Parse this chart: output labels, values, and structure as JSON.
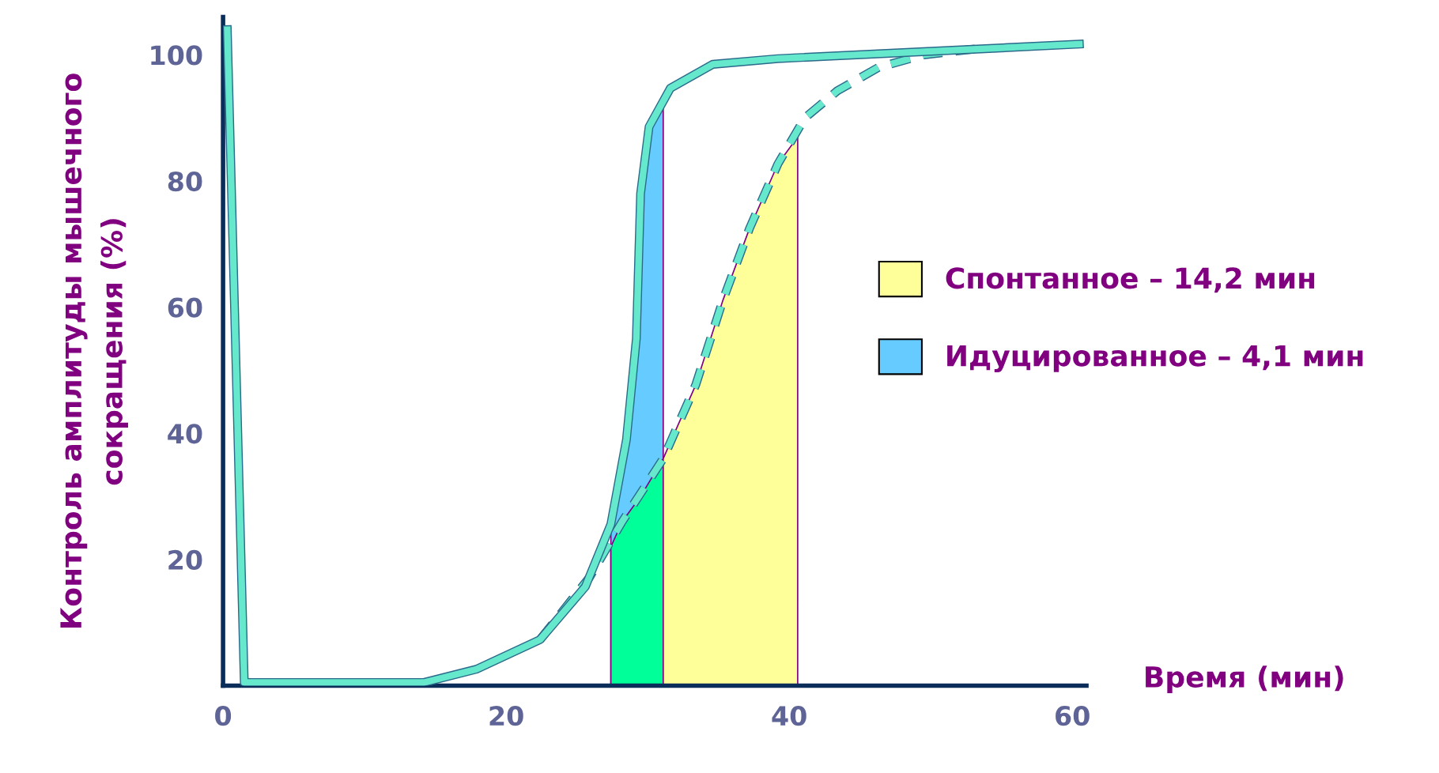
{
  "chart_data": {
    "type": "line",
    "xlabel": "Время (мин)",
    "ylabel": "Контроль амплитуды мышечного\nсокращения (%)",
    "xlim": [
      0,
      61
    ],
    "ylim": [
      0,
      106
    ],
    "xticks": [
      0,
      20,
      40,
      60
    ],
    "yticks": [
      20,
      40,
      60,
      80,
      100
    ],
    "grid": false,
    "legend": "right",
    "series": [
      {
        "type": "area",
        "name": "Идуцированное – 4,1 мин",
        "color": "#66ccff",
        "x": [
          27.4,
          28.5,
          29.2,
          29.5,
          30.1,
          31.1
        ],
        "values": [
          25.6,
          39,
          55,
          78,
          88.6,
          92
        ]
      },
      {
        "type": "area",
        "color": "#00ff99",
        "x": [
          27.4,
          28.2,
          29.5,
          31.1
        ],
        "values": [
          22,
          26,
          30,
          36
        ]
      },
      {
        "type": "area",
        "name": "Спонтанное – 14,2 мин",
        "color": "#ffff99",
        "x": [
          31.1,
          33.4,
          35.3,
          37.2,
          39.2,
          40.6
        ],
        "values": [
          36,
          47.7,
          61,
          72.5,
          82.7,
          87
        ]
      },
      {
        "color": "#66e8cc",
        "line_style": "dashed",
        "x": [
          22.4,
          25.9,
          28.2,
          31.1,
          33.4,
          35.3,
          37.2,
          39.2,
          41.1,
          43.4,
          46.3,
          49.5,
          53.4
        ],
        "values": [
          7.3,
          17.2,
          26,
          36,
          47.7,
          61,
          72.5,
          82.7,
          90,
          94.3,
          98,
          100,
          101
        ]
      },
      {
        "color": "#66e8cc",
        "line_style": "solid",
        "x": [
          0.3,
          1.5,
          14.2,
          17.9,
          22.4,
          25.6,
          27.4,
          28.5,
          29.2,
          29.5,
          30.1,
          31.6,
          34.6,
          39.2,
          60.5
        ],
        "values": [
          104,
          0.5,
          0.5,
          2.6,
          7.3,
          15.7,
          25.6,
          39,
          55,
          78,
          88.6,
          94.7,
          98.5,
          99.4,
          101.7
        ]
      }
    ]
  }
}
